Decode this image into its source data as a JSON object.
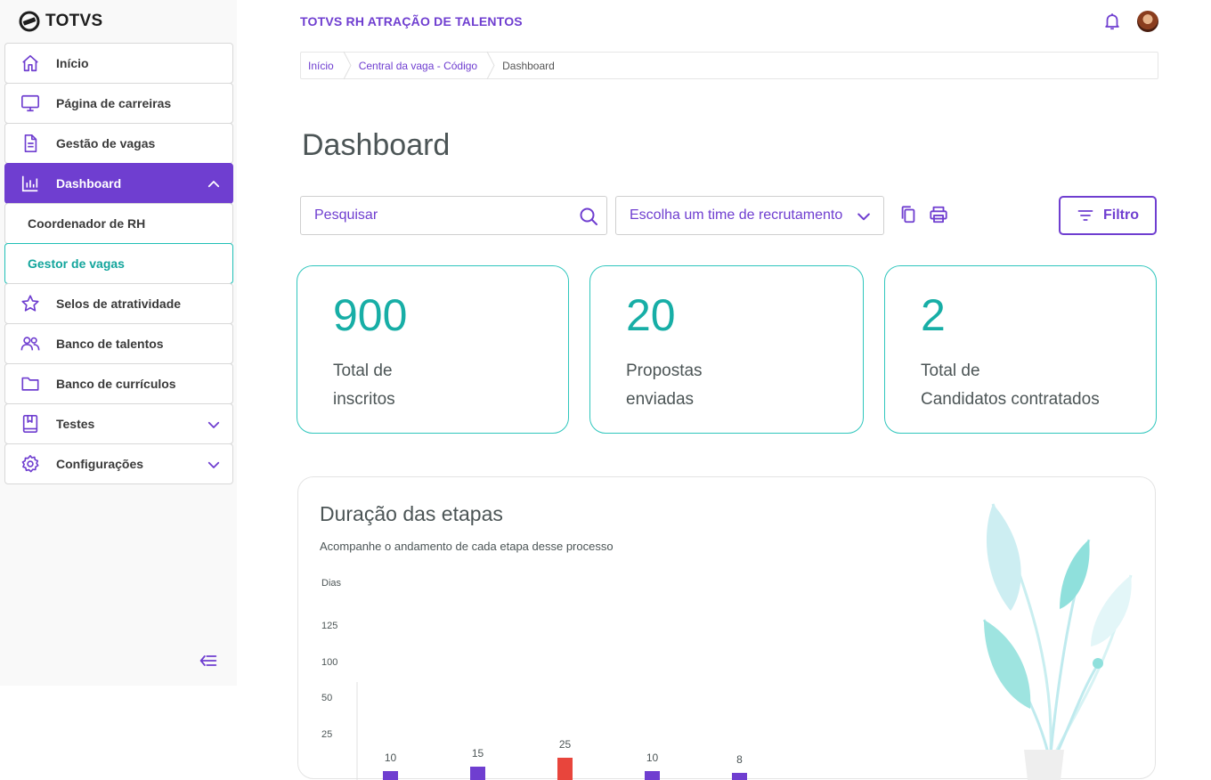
{
  "brand": {
    "name": "TOTVS"
  },
  "sidebar": {
    "items": [
      {
        "label": "Início",
        "icon": "home-icon"
      },
      {
        "label": "Página de carreiras",
        "icon": "monitor-icon"
      },
      {
        "label": "Gestão de vagas",
        "icon": "document-icon"
      },
      {
        "label": "Dashboard",
        "icon": "bar-chart-icon",
        "active": true,
        "expanded": true
      },
      {
        "label": "Coordenador de RH"
      },
      {
        "label": "Gestor de vagas",
        "selected": true
      },
      {
        "label": "Selos de atratividade",
        "icon": "star-icon"
      },
      {
        "label": "Banco de talentos",
        "icon": "users-icon"
      },
      {
        "label": "Banco de currículos",
        "icon": "folder-icon"
      },
      {
        "label": "Testes",
        "icon": "book-icon"
      },
      {
        "label": "Configurações",
        "icon": "gear-icon"
      }
    ]
  },
  "header": {
    "app_title": "TOTVS RH ATRAÇÃO DE TALENTOS"
  },
  "breadcrumb": [
    "Início",
    "Central da vaga - Código",
    "Dashboard"
  ],
  "page_title": "Dashboard",
  "toolbar": {
    "search_placeholder": "Pesquisar",
    "team_select": "Escolha um time de recrutamento",
    "filter_label": "Filtro"
  },
  "kpis": [
    {
      "value": "900",
      "label": "Total de\ninscritos"
    },
    {
      "value": "20",
      "label": "Propostas\nenviadas"
    },
    {
      "value": "2",
      "label": "Total de\nCandidatos contratados"
    }
  ],
  "colors": {
    "primary": "#6f3ed0",
    "accent": "#17aea6",
    "alert": "#e8453c"
  },
  "chart": {
    "title": "Duração das etapas",
    "subtitle": "Acompanhe o andamento de cada etapa desse processo"
  },
  "chart_data": {
    "type": "bar",
    "title": "Duração das etapas",
    "subtitle": "Acompanhe o andamento de cada etapa desse processo",
    "ylabel": "Dias",
    "yticks": [
      "125",
      "100",
      "50",
      "25"
    ],
    "values": [
      10,
      15,
      25,
      10,
      8
    ],
    "value_labels": [
      "10",
      "15",
      "25",
      "10",
      "8"
    ],
    "bar_colors": [
      "#6f3ed0",
      "#6f3ed0",
      "#e8453c",
      "#6f3ed0",
      "#6f3ed0"
    ]
  }
}
